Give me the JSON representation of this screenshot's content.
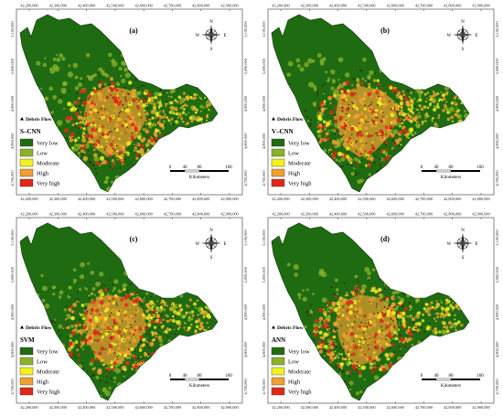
{
  "x_ticks": [
    "42,200,000",
    "42,300,000",
    "42,400,000",
    "42,500,000",
    "42,600,000",
    "42,700,000",
    "42,800,000",
    "42,900,000"
  ],
  "y_ticks": [
    "5,100,000",
    "5,000,000",
    "4,900,000",
    "4,800,000",
    "4,700,000"
  ],
  "legend_classes": [
    {
      "label": "Very low",
      "color": "#1f6b12"
    },
    {
      "label": "Low",
      "color": "#8bb32a"
    },
    {
      "label": "Moderate",
      "color": "#f2f21e"
    },
    {
      "label": "High",
      "color": "#f0a030"
    },
    {
      "label": "Very high",
      "color": "#e02818"
    }
  ],
  "debris_flow_label": "Debris Flow",
  "scale_bar": {
    "ticks": [
      "0",
      "40",
      "80",
      "160"
    ],
    "unit": "Kilometers"
  },
  "compass": {
    "n": "N",
    "s": "S",
    "e": "E",
    "w": "W"
  },
  "panels": [
    {
      "letter": "(a)",
      "model": "S–CNN",
      "high_share": 0.55
    },
    {
      "letter": "(b)",
      "model": "V–CNN",
      "high_share": 0.6
    },
    {
      "letter": "(c)",
      "model": "SVM",
      "high_share": 0.5
    },
    {
      "letter": "(d)",
      "model": "ANN",
      "high_share": 0.45
    }
  ]
}
